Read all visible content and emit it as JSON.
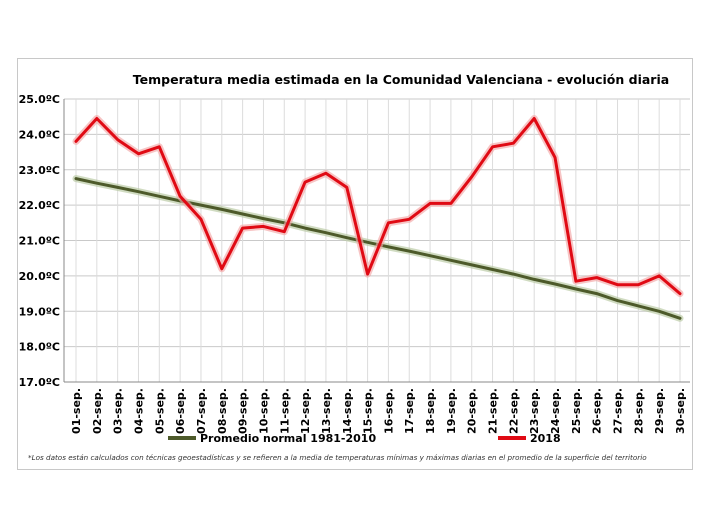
{
  "chart_data": {
    "type": "line",
    "title": "Temperatura media estimada en la Comunidad Valenciana - evolución diaria",
    "xlabel": "",
    "ylabel": "",
    "ylim": [
      17.0,
      25.0
    ],
    "y_ticks": [
      "17.0ºC",
      "18.0ºC",
      "19.0ºC",
      "20.0ºC",
      "21.0ºC",
      "22.0ºC",
      "23.0ºC",
      "24.0ºC",
      "25.0ºC"
    ],
    "grid": true,
    "legend_placement": "bottom",
    "categories": [
      "01-sep.",
      "02-sep.",
      "03-sep.",
      "04-sep.",
      "05-sep.",
      "06-sep.",
      "07-sep.",
      "08-sep.",
      "09-sep.",
      "10-sep.",
      "11-sep.",
      "12-sep.",
      "13-sep.",
      "14-sep.",
      "15-sep.",
      "16-sep.",
      "17-sep.",
      "18-sep.",
      "19-sep.",
      "20-sep.",
      "21-sep.",
      "22-sep.",
      "23-sep.",
      "24-sep.",
      "25-sep.",
      "26-sep.",
      "27-sep.",
      "28-sep.",
      "29-sep.",
      "30-sep."
    ],
    "series": [
      {
        "name": "Promedio normal 1981-2010",
        "color": "#4d5a2a",
        "values": [
          22.75,
          22.62,
          22.5,
          22.38,
          22.25,
          22.12,
          22.0,
          21.88,
          21.75,
          21.62,
          21.5,
          21.35,
          21.22,
          21.08,
          20.95,
          20.82,
          20.7,
          20.57,
          20.44,
          20.31,
          20.18,
          20.05,
          19.9,
          19.77,
          19.63,
          19.5,
          19.3,
          19.15,
          19.0,
          18.8
        ]
      },
      {
        "name": "2018",
        "color": "#e00a14",
        "values": [
          23.8,
          24.45,
          23.85,
          23.45,
          23.65,
          22.25,
          21.6,
          20.2,
          21.35,
          21.4,
          21.25,
          22.65,
          22.9,
          22.5,
          20.05,
          21.5,
          21.6,
          22.05,
          22.05,
          22.8,
          23.65,
          23.75,
          24.45,
          23.35,
          19.85,
          19.95,
          19.75,
          19.75,
          20.0,
          19.5
        ]
      }
    ],
    "footnote": "*Los datos están calculados con técnicas geoestadísticas y se refieren a la media de temperaturas mínimas y máximas diarias en el promedio de la superficie del territorio"
  }
}
